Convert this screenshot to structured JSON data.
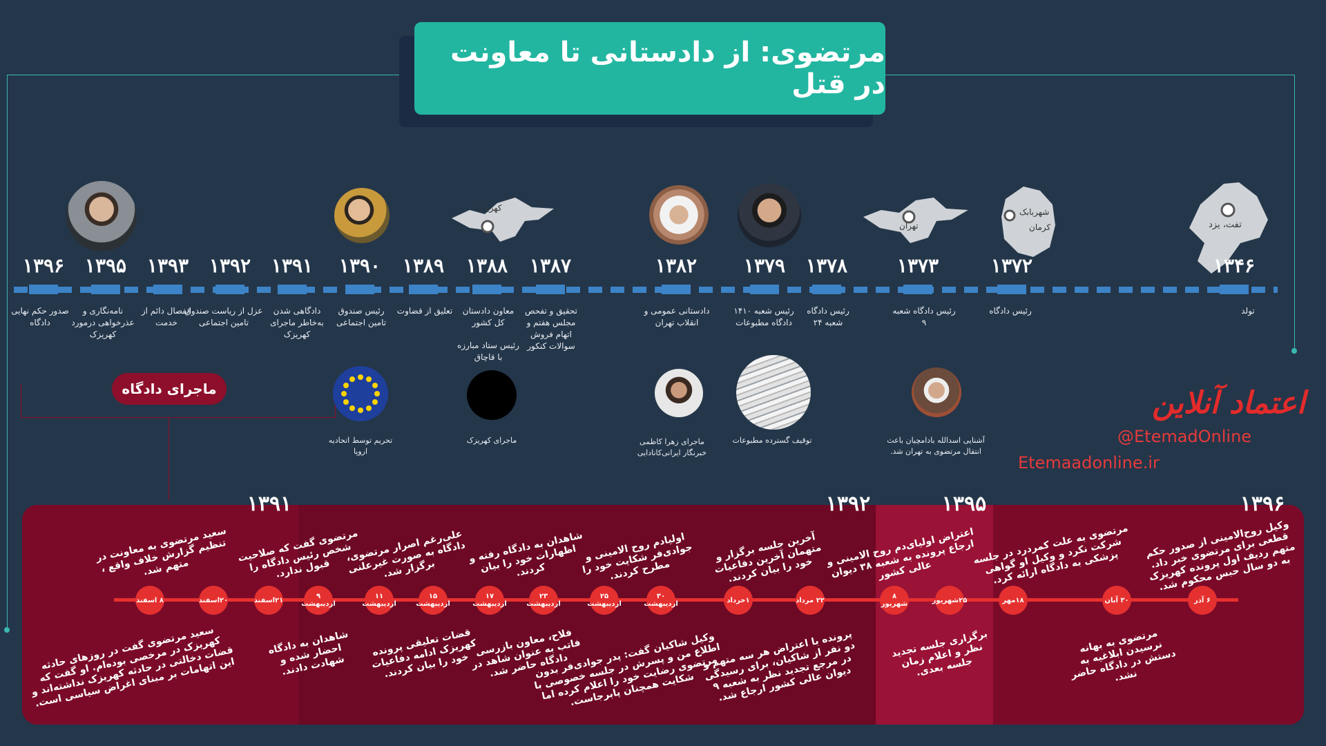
{
  "title": "مرتضوی: از دادستانی تا معاونت در قتل",
  "timeline": [
    {
      "year": "۱۳۹۶",
      "caption": "صدور حکم نهایی دادگاه"
    },
    {
      "year": "۱۳۹۵",
      "caption": "نامه‌نگاری و عذرخواهی درمورد کهریزک"
    },
    {
      "year": "۱۳۹۳",
      "caption": "انفصال دائم از خدمت"
    },
    {
      "year": "۱۳۹۲",
      "caption": "عزل از ریاست صندوق تامین اجتماعی"
    },
    {
      "year": "۱۳۹۱",
      "caption": "دادگاهی شدن به‌خاطر ماجرای کهریزک"
    },
    {
      "year": "۱۳۹۰",
      "caption": "رئیس صندوق تامین اجتماعی"
    },
    {
      "year": "۱۳۸۹",
      "caption": "تعلیق از قضاوت"
    },
    {
      "year": "۱۳۸۸",
      "caption": "معاون دادستان کل کشور",
      "caption2": "رئیس ستاد مبارزه با قاچاق"
    },
    {
      "year": "۱۳۸۷",
      "caption": "تحقیق و تفحص مجلس هفتم و اتهام فروش سوالات کنکور"
    },
    {
      "year": "۱۳۸۲",
      "caption": "دادستانی عمومی و انقلاب تهران"
    },
    {
      "year": "۱۳۷۹",
      "caption": "رئیس شعبه ۱۴۱۰ دادگاه مطبوعات"
    },
    {
      "year": "۱۳۷۸",
      "caption": "رئیس دادگاه شعبه ۲۴"
    },
    {
      "year": "۱۳۷۳",
      "caption": "رئیس دادگاه شعبه ۹"
    },
    {
      "year": "۱۳۷۲",
      "caption": "رئیس دادگاه"
    },
    {
      "year": "۱۳۴۶",
      "caption": "تولد"
    }
  ],
  "maps": {
    "kahrizak": "کهریزک",
    "tehran": "تهران",
    "shahrebabak": "شهربابک",
    "kerman": "کرمان",
    "taft": "تفت، یزد"
  },
  "events": [
    {
      "caption": "تحریم توسط اتحادیه اروپا",
      "icon": "eu-flag-icon"
    },
    {
      "caption": "ماجرای کهریزک",
      "icon": "black-circle-icon"
    },
    {
      "caption": "ماجرای زهرا کاظمی خبرنگار ایرانی‌کانادایی",
      "icon": "portrait-icon"
    },
    {
      "caption": "توقیف گسترده مطبوعات",
      "icon": "newspaper-icon"
    },
    {
      "caption": "آشنایی اسدالله بادامچیان باعث انتقال مرتضوی به تهران شد.",
      "icon": "portrait-icon"
    }
  ],
  "badge": "ماجرای دادگاه",
  "brand": {
    "logo": "اعتماد آنلاین",
    "handle": "@EtemadOnline",
    "site": "Etemaadonline.ir"
  },
  "court": {
    "years": [
      "۱۳۹۱",
      "۱۳۹۲",
      "۱۳۹۵",
      "۱۳۹۶"
    ],
    "nodes": [
      "۸ اسفند",
      "۲۰اسفند",
      "۲۱اسفند",
      "۹ اردیبهشت",
      "۱۱ اردیبهشت",
      "۱۵ اردیبهشت",
      "۱۷ اردیبهشت",
      "۲۳ اردیبهشت",
      "۲۵ اردیبهشت",
      "۳۰ اردیبهشت",
      "۱خرداد",
      "۲۲ مرداد",
      "۸ شهریور",
      "۲۵شهریور",
      "۱۸مهر",
      "۳۰ آبان",
      "۶ آذر"
    ],
    "top_texts": [
      "سعید مرتضوی به معاونت در تنظیم گزارش خلاف واقع ، متهم شد.",
      "مرتضوی گفت که صلاحیت شخص رئیس دادگاه را قبول ندارد.",
      "علی‌رغم اصرار مرتضوی، دادگاه به صورت غیرعلنی برگزار شد.",
      "شاهدان به دادگاه رفته و اظهارات خود را بیان کردند.",
      "اولیادم روح الامینی و جوادی‌فر شکایت خود را مطرح کردند.",
      "آخرین جلسه برگزار و متهمان آخرین دفاعیات خود را بیان کردند.",
      "اعتراض اولیای‌دم روح الامینی و ارجاع پرونده به شعبه ۳۸ دیوان عالی کشور",
      "مرتضوی به علت کمردرد در جلسه شرکت نکرد و وکیل او گواهی پزشکی به دادگاه ارائه کرد.",
      "وکیل روح‌الامینی از صدور حکم قطعی برای مرتضوی خبر داد. متهم ردیف اول پرونده کهریزک به دو سال حبس محکوم شد."
    ],
    "bottom_texts": [
      "سعید مرتضوی گفت در روزهای حادثه کهریزک در مرخصی بوده‌ام. او گفت که قضات دخالتی در حادثه کهریزک نداشته‌اند و این اتهامات بر مبنای اغراض سیاسی است.",
      "شاهدان به دادگاه احضار شده و شهادت دادند.",
      "قضات تعلیقی پرونده کهریزک ادامه دفاعیات خود را بیان کردند.",
      "فلاح، معاون بازرسی فاتب به عنوان شاهد در دادگاه حاضر شد.",
      "وکیل شاکیان گفت: پدر جوادی‌فر بدون اطلاع من و پسرش در جلسه خصوصی با مرتضوی رضایت خود را اعلام کرده اما شکایت همچنان پابرجاست.",
      "پرونده با اعتراض هر سه متهم و دو نفر از شاکیان، برای رسیدگی در مرجع تجدید نظر به شعبه ۹ دیوان عالی کشور ارجاع شد.",
      "برگزاری جلسه تجدید نظر و اعلام زمان جلسه بعدی.",
      "مرتضوی به بهانه نرسیدن ابلاغیه به دستش در دادگاه حاضر نشد."
    ]
  },
  "colors": {
    "background": "#24364a",
    "title_box": "#22b6a1",
    "timeline_dash": "#3d83c7",
    "court_panel": "#7b0a28",
    "court_node": "#e53030",
    "brand_red": "#e32b2b"
  }
}
